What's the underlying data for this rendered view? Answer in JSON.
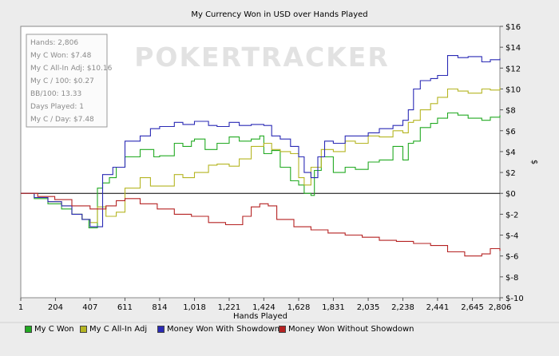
{
  "chart_data": {
    "type": "line",
    "title": "My Currency Won in USD over Hands Played",
    "xlabel": "Hands Played",
    "ylabel": "$",
    "watermark": "POKERTRACKER",
    "xlim": [
      1,
      2806
    ],
    "ylim": [
      -10,
      16
    ],
    "x_ticks": [
      1,
      204,
      407,
      611,
      814,
      1018,
      1221,
      1424,
      1628,
      1831,
      2035,
      2238,
      2441,
      2645,
      2806
    ],
    "x_tick_labels": [
      "1",
      "204",
      "407",
      "611",
      "814",
      "1,018",
      "1,221",
      "1,424",
      "1,628",
      "1,831",
      "2,035",
      "2,238",
      "2,441",
      "2,645",
      "2,806"
    ],
    "y_ticks": [
      16,
      14,
      12,
      10,
      8,
      6,
      4,
      2,
      0,
      -2,
      -4,
      -6,
      -8,
      -10
    ],
    "y_tick_labels": [
      "$16",
      "$14",
      "$12",
      "$10",
      "$8",
      "$6",
      "$4",
      "$2",
      "$0",
      "$-2",
      "$-4",
      "$-6",
      "$-8",
      "$-10"
    ],
    "stats": [
      "Hands: 2,806",
      "My C Won: $7.48",
      "My C All-In Adj: $10.16",
      "My C / 100: $0.27",
      "BB/100: 13.33",
      "Days Played: 1",
      "My C / Day: $7.48"
    ],
    "series": [
      {
        "name": "My C Won",
        "color": "#22aa22",
        "x": [
          1,
          80,
          160,
          240,
          300,
          360,
          400,
          450,
          480,
          520,
          560,
          611,
          700,
          780,
          814,
          900,
          950,
          1000,
          1018,
          1080,
          1150,
          1221,
          1280,
          1350,
          1400,
          1424,
          1470,
          1520,
          1580,
          1628,
          1660,
          1700,
          1720,
          1760,
          1831,
          1900,
          1960,
          2035,
          2100,
          2180,
          2238,
          2270,
          2300,
          2340,
          2400,
          2441,
          2500,
          2560,
          2620,
          2700,
          2750,
          2806
        ],
        "y": [
          0,
          -0.5,
          -1,
          -1.5,
          -2,
          -2.5,
          -3.3,
          0.5,
          1,
          1.5,
          2.5,
          3.5,
          4.2,
          3.5,
          3.6,
          4.8,
          4.5,
          5,
          5.2,
          4.2,
          4.8,
          5.4,
          5,
          5.2,
          5.5,
          3.8,
          4.1,
          2.5,
          1.2,
          0.8,
          0,
          -0.2,
          2.2,
          3.5,
          2,
          2.5,
          2.3,
          3,
          3.2,
          4.5,
          3.2,
          4.8,
          5,
          6.3,
          6.7,
          7.2,
          7.7,
          7.5,
          7.2,
          7.0,
          7.3,
          7.48
        ]
      },
      {
        "name": "My C All-In Adj",
        "color": "#b5b522",
        "x": [
          1,
          80,
          160,
          240,
          300,
          360,
          407,
          450,
          500,
          560,
          611,
          700,
          760,
          814,
          900,
          950,
          1018,
          1100,
          1150,
          1221,
          1280,
          1350,
          1424,
          1470,
          1520,
          1580,
          1628,
          1660,
          1700,
          1760,
          1831,
          1900,
          1960,
          2035,
          2100,
          2180,
          2238,
          2270,
          2300,
          2340,
          2400,
          2441,
          2500,
          2560,
          2620,
          2700,
          2750,
          2806
        ],
        "y": [
          0,
          -0.4,
          -0.8,
          -1.2,
          -2,
          -2.5,
          -2.8,
          -1.3,
          -2.2,
          -1.8,
          0.5,
          1.5,
          0.7,
          0.7,
          1.8,
          1.5,
          2.0,
          2.7,
          2.8,
          2.6,
          3.3,
          4.5,
          4.8,
          4.2,
          4.0,
          3.8,
          1.5,
          0.8,
          2.5,
          4.2,
          4.0,
          5.0,
          4.8,
          5.5,
          5.4,
          6.0,
          5.8,
          6.8,
          7.0,
          8.0,
          8.6,
          9.2,
          10.0,
          9.8,
          9.6,
          10.0,
          9.9,
          10.16
        ]
      },
      {
        "name": "Money Won With Showdown",
        "color": "#2a2ab5",
        "x": [
          1,
          80,
          160,
          240,
          300,
          360,
          407,
          480,
          540,
          611,
          700,
          760,
          814,
          900,
          950,
          1018,
          1100,
          1150,
          1221,
          1280,
          1350,
          1424,
          1470,
          1520,
          1580,
          1628,
          1660,
          1700,
          1740,
          1780,
          1831,
          1900,
          1960,
          2035,
          2100,
          2180,
          2238,
          2270,
          2300,
          2340,
          2400,
          2441,
          2500,
          2560,
          2620,
          2700,
          2750,
          2806
        ],
        "y": [
          0,
          -0.4,
          -0.8,
          -1.2,
          -2,
          -2.5,
          -3.2,
          1.8,
          2.5,
          5.0,
          5.5,
          6.2,
          6.4,
          6.8,
          6.6,
          6.9,
          6.5,
          6.4,
          6.8,
          6.5,
          6.6,
          6.5,
          5.5,
          5.2,
          4.5,
          3.5,
          2.0,
          1.5,
          3.5,
          5.0,
          4.8,
          5.5,
          5.5,
          5.8,
          6.2,
          6.5,
          7.0,
          8.0,
          10.0,
          10.8,
          11.0,
          11.3,
          13.2,
          13.0,
          13.1,
          12.6,
          12.8,
          12.9
        ]
      },
      {
        "name": "Money Won Without Showdown",
        "color": "#b52222",
        "x": [
          1,
          100,
          200,
          300,
          407,
          500,
          560,
          611,
          700,
          800,
          900,
          1000,
          1100,
          1200,
          1300,
          1350,
          1400,
          1450,
          1500,
          1600,
          1700,
          1800,
          1900,
          2000,
          2100,
          2200,
          2300,
          2400,
          2500,
          2600,
          2700,
          2750,
          2806
        ],
        "y": [
          0,
          -0.3,
          -0.6,
          -1.2,
          -1.5,
          -1.2,
          -0.7,
          -0.5,
          -1.0,
          -1.5,
          -2.0,
          -2.2,
          -2.8,
          -3.0,
          -2.2,
          -1.3,
          -1.0,
          -1.2,
          -2.5,
          -3.2,
          -3.5,
          -3.8,
          -4.0,
          -4.2,
          -4.5,
          -4.6,
          -4.8,
          -5.0,
          -5.6,
          -6.0,
          -5.8,
          -5.3,
          -5.5
        ]
      }
    ]
  }
}
